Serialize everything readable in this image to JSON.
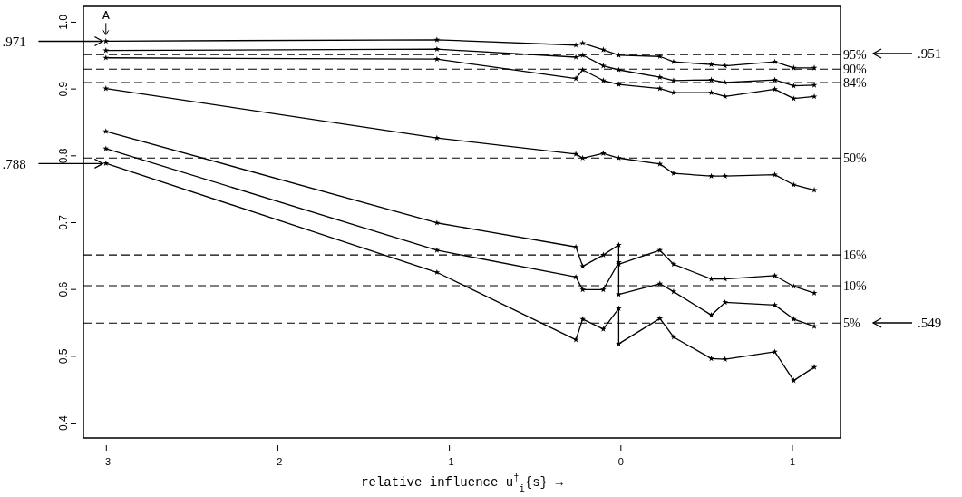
{
  "chart_data": {
    "type": "line",
    "xlabel": "relative influence u$^{†}$$_{i}${s} →",
    "xlim": [
      -3.131,
      1.283
    ],
    "ylim": [
      0.377,
      1.023
    ],
    "xticks": [
      -3,
      -2,
      -1,
      0,
      1
    ],
    "yticks": [
      0.4,
      0.5,
      0.6,
      0.7,
      0.8,
      0.9,
      {
        "value": 1,
        "label": "1.0"
      }
    ],
    "grid": false,
    "marker": "star",
    "line_style": "solid",
    "series": [
      {
        "color": "#000000",
        "x": [
          -3,
          -1.07,
          -0.26,
          -0.22,
          -0.1,
          -0.01,
          0.23,
          0.31,
          0.53,
          0.61,
          0.9,
          1.01,
          1.13
        ],
        "values": [
          0.971,
          0.973,
          0.965,
          0.968,
          0.958,
          0.95,
          0.948,
          0.94,
          0.936,
          0.934,
          0.94,
          0.931,
          0.931
        ]
      },
      {
        "color": "#000000",
        "x": [
          -3,
          -1.07,
          -0.26,
          -0.22,
          -0.1,
          -0.01,
          0.23,
          0.31,
          0.53,
          0.61,
          0.9,
          1.01,
          1.13
        ],
        "values": [
          0.957,
          0.959,
          0.947,
          0.95,
          0.934,
          0.928,
          0.917,
          0.912,
          0.913,
          0.909,
          0.913,
          0.904,
          0.905
        ]
      },
      {
        "color": "#000000",
        "x": [
          -3,
          -1.07,
          -0.26,
          -0.22,
          -0.1,
          -0.01,
          0.23,
          0.31,
          0.53,
          0.61,
          0.9,
          1.01,
          1.13
        ],
        "values": [
          0.946,
          0.944,
          0.915,
          0.928,
          0.912,
          0.906,
          0.9,
          0.894,
          0.894,
          0.888,
          0.899,
          0.885,
          0.888
        ]
      },
      {
        "color": "#000000",
        "x": [
          -3,
          -1.07,
          -0.26,
          -0.22,
          -0.1,
          -0.01,
          0.23,
          0.31,
          0.53,
          0.61,
          0.9,
          1.01,
          1.13
        ],
        "values": [
          0.9,
          0.826,
          0.802,
          0.796,
          0.803,
          0.796,
          0.787,
          0.773,
          0.769,
          0.769,
          0.771,
          0.756,
          0.748
        ]
      },
      {
        "color": "#000000",
        "x": [
          -3,
          -1.07,
          -0.26,
          -0.22,
          -0.1,
          -0.01,
          -0.01,
          0.23,
          0.31,
          0.53,
          0.61,
          0.9,
          1.01,
          1.13
        ],
        "values": [
          0.836,
          0.699,
          0.663,
          0.634,
          0.651,
          0.666,
          0.637,
          0.658,
          0.637,
          0.615,
          0.615,
          0.62,
          0.604,
          0.594
        ]
      },
      {
        "color": "#000000",
        "x": [
          -3,
          -1.07,
          -0.26,
          -0.22,
          -0.1,
          -0.01,
          -0.01,
          0.23,
          0.31,
          0.53,
          0.61,
          0.9,
          1.01,
          1.13
        ],
        "values": [
          0.81,
          0.658,
          0.618,
          0.599,
          0.599,
          0.64,
          0.592,
          0.608,
          0.596,
          0.561,
          0.58,
          0.576,
          0.555,
          0.544
        ]
      },
      {
        "color": "#000000",
        "x": [
          -3,
          -1.07,
          -0.26,
          -0.22,
          -0.1,
          -0.01,
          -0.01,
          0.23,
          0.31,
          0.53,
          0.61,
          0.9,
          1.01,
          1.13
        ],
        "values": [
          0.788,
          0.625,
          0.524,
          0.555,
          0.54,
          0.571,
          0.518,
          0.556,
          0.528,
          0.496,
          0.495,
          0.506,
          0.463,
          0.483
        ]
      }
    ],
    "ref_lines": [
      {
        "axis": "y",
        "value": 0.951,
        "line_style": "dashed",
        "color": "#000000"
      },
      {
        "axis": "y",
        "value": 0.929,
        "line_style": "dashed",
        "color": "#000000"
      },
      {
        "axis": "y",
        "value": 0.909,
        "line_style": "dashed",
        "color": "#000000"
      },
      {
        "axis": "y",
        "value": 0.796,
        "line_style": "dashed",
        "color": "#000000"
      },
      {
        "axis": "y",
        "value": 0.651,
        "line_style": "dashed",
        "color": "#000000"
      },
      {
        "axis": "y",
        "value": 0.605,
        "line_style": "dashed",
        "color": "#000000"
      },
      {
        "axis": "y",
        "value": 0.549,
        "line_style": "dashed",
        "color": "#000000"
      }
    ],
    "annotations": [
      ".971",
      ".788",
      {
        "text": "A",
        "x": -3,
        "y": 0.971
      },
      ".951",
      ".549",
      "95%",
      "90%",
      "84%",
      "50%",
      "16%",
      "10%",
      "5%"
    ]
  }
}
